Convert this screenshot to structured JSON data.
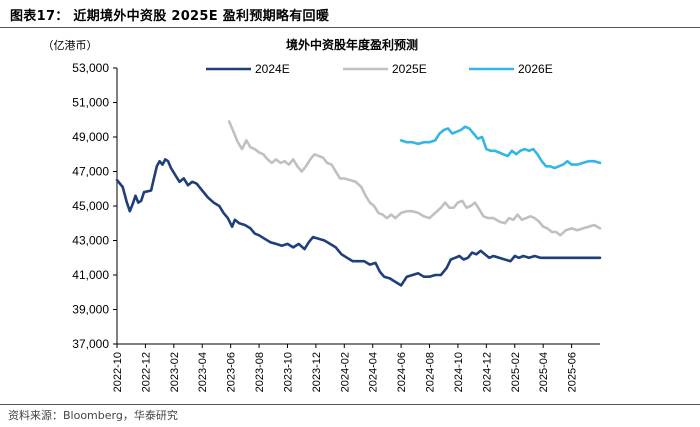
{
  "figure": {
    "title": "图表17：  近期境外中资股 2025E 盈利预期略有回暖",
    "source": "资料来源：Bloomberg，华泰研究"
  },
  "chart_data": {
    "type": "line",
    "title": "境外中资股年度盈利预测",
    "unit_label": "（亿港币）",
    "ylim": [
      37000,
      53000
    ],
    "yticks": [
      37000,
      39000,
      41000,
      43000,
      45000,
      47000,
      49000,
      51000,
      53000
    ],
    "ytick_labels": [
      "37,000",
      "39,000",
      "41,000",
      "43,000",
      "45,000",
      "47,000",
      "49,000",
      "51,000",
      "53,000"
    ],
    "xlim": [
      0,
      34
    ],
    "xtick_labels": [
      "2022-10",
      "2022-12",
      "2023-02",
      "2023-04",
      "2023-06",
      "2023-08",
      "2023-10",
      "2023-12",
      "2024-02",
      "2024-04",
      "2024-06",
      "2024-08",
      "2024-10",
      "2024-12",
      "2025-02",
      "2025-04",
      "2025-06"
    ],
    "xtick_positions": [
      0,
      2,
      4,
      6,
      8,
      10,
      12,
      14,
      16,
      18,
      20,
      22,
      24,
      26,
      28,
      30,
      32
    ],
    "legend_position": "top",
    "series": [
      {
        "name": "2024E",
        "color": "#1f3f7a",
        "points": [
          [
            0,
            46500
          ],
          [
            0.4,
            46100
          ],
          [
            0.7,
            45200
          ],
          [
            0.9,
            44700
          ],
          [
            1.1,
            45100
          ],
          [
            1.3,
            45600
          ],
          [
            1.5,
            45200
          ],
          [
            1.7,
            45300
          ],
          [
            1.9,
            45800
          ],
          [
            2.4,
            45900
          ],
          [
            2.6,
            46600
          ],
          [
            2.8,
            47300
          ],
          [
            3.0,
            47600
          ],
          [
            3.2,
            47400
          ],
          [
            3.4,
            47700
          ],
          [
            3.6,
            47600
          ],
          [
            3.8,
            47200
          ],
          [
            4.1,
            46800
          ],
          [
            4.4,
            46400
          ],
          [
            4.7,
            46600
          ],
          [
            5.0,
            46200
          ],
          [
            5.3,
            46400
          ],
          [
            5.6,
            46300
          ],
          [
            6.0,
            45900
          ],
          [
            6.4,
            45500
          ],
          [
            6.8,
            45200
          ],
          [
            7.2,
            45000
          ],
          [
            7.5,
            44600
          ],
          [
            7.8,
            44300
          ],
          [
            8.1,
            43800
          ],
          [
            8.3,
            44200
          ],
          [
            8.6,
            44000
          ],
          [
            9.0,
            43900
          ],
          [
            9.4,
            43700
          ],
          [
            9.7,
            43400
          ],
          [
            10.0,
            43300
          ],
          [
            10.4,
            43100
          ],
          [
            10.8,
            42900
          ],
          [
            11.2,
            42800
          ],
          [
            11.6,
            42700
          ],
          [
            12.0,
            42800
          ],
          [
            12.4,
            42600
          ],
          [
            12.8,
            42800
          ],
          [
            13.2,
            42500
          ],
          [
            13.5,
            42900
          ],
          [
            13.8,
            43200
          ],
          [
            14.2,
            43100
          ],
          [
            14.6,
            43000
          ],
          [
            15.0,
            42800
          ],
          [
            15.4,
            42600
          ],
          [
            15.8,
            42200
          ],
          [
            16.2,
            42000
          ],
          [
            16.6,
            41800
          ],
          [
            17.0,
            41800
          ],
          [
            17.4,
            41800
          ],
          [
            17.8,
            41600
          ],
          [
            18.2,
            41700
          ],
          [
            18.5,
            41200
          ],
          [
            18.8,
            40900
          ],
          [
            19.2,
            40800
          ],
          [
            19.6,
            40600
          ],
          [
            20.0,
            40400
          ],
          [
            20.4,
            40900
          ],
          [
            20.8,
            41000
          ],
          [
            21.2,
            41100
          ],
          [
            21.6,
            40900
          ],
          [
            22.0,
            40900
          ],
          [
            22.4,
            41000
          ],
          [
            22.8,
            41000
          ],
          [
            23.2,
            41400
          ],
          [
            23.5,
            41900
          ],
          [
            23.8,
            42000
          ],
          [
            24.1,
            42100
          ],
          [
            24.4,
            41900
          ],
          [
            24.7,
            42000
          ],
          [
            25.0,
            42300
          ],
          [
            25.3,
            42200
          ],
          [
            25.6,
            42400
          ],
          [
            25.9,
            42200
          ],
          [
            26.2,
            42000
          ],
          [
            26.5,
            42100
          ],
          [
            26.9,
            42000
          ],
          [
            27.3,
            41900
          ],
          [
            27.7,
            41800
          ],
          [
            28.0,
            42100
          ],
          [
            28.3,
            42000
          ],
          [
            28.6,
            42100
          ],
          [
            29.0,
            42000
          ],
          [
            29.4,
            42100
          ],
          [
            29.8,
            42000
          ],
          [
            30.2,
            42000
          ],
          [
            30.6,
            42000
          ],
          [
            31.0,
            42000
          ],
          [
            31.5,
            42000
          ],
          [
            32.0,
            42000
          ],
          [
            32.5,
            42000
          ],
          [
            33.0,
            42000
          ],
          [
            33.5,
            42000
          ],
          [
            34.0,
            42000
          ]
        ]
      },
      {
        "name": "2025E",
        "color": "#c0c0c0",
        "points": [
          [
            7.9,
            49900
          ],
          [
            8.2,
            49300
          ],
          [
            8.5,
            48700
          ],
          [
            8.8,
            48300
          ],
          [
            9.1,
            48800
          ],
          [
            9.4,
            48400
          ],
          [
            9.7,
            48300
          ],
          [
            10.0,
            48100
          ],
          [
            10.3,
            48000
          ],
          [
            10.6,
            47700
          ],
          [
            10.9,
            47500
          ],
          [
            11.2,
            47700
          ],
          [
            11.5,
            47500
          ],
          [
            11.8,
            47600
          ],
          [
            12.1,
            47400
          ],
          [
            12.4,
            47700
          ],
          [
            12.7,
            47300
          ],
          [
            13.0,
            47000
          ],
          [
            13.3,
            47300
          ],
          [
            13.6,
            47700
          ],
          [
            13.9,
            48000
          ],
          [
            14.2,
            47900
          ],
          [
            14.5,
            47800
          ],
          [
            14.8,
            47500
          ],
          [
            15.1,
            47400
          ],
          [
            15.4,
            47000
          ],
          [
            15.7,
            46600
          ],
          [
            16.0,
            46600
          ],
          [
            16.4,
            46500
          ],
          [
            16.8,
            46400
          ],
          [
            17.2,
            46100
          ],
          [
            17.5,
            45600
          ],
          [
            17.8,
            45200
          ],
          [
            18.1,
            45000
          ],
          [
            18.4,
            44600
          ],
          [
            18.7,
            44500
          ],
          [
            19.0,
            44300
          ],
          [
            19.3,
            44500
          ],
          [
            19.6,
            44300
          ],
          [
            20.0,
            44600
          ],
          [
            20.4,
            44700
          ],
          [
            20.8,
            44700
          ],
          [
            21.2,
            44600
          ],
          [
            21.6,
            44400
          ],
          [
            22.0,
            44300
          ],
          [
            22.4,
            44600
          ],
          [
            22.8,
            44900
          ],
          [
            23.1,
            45200
          ],
          [
            23.4,
            44900
          ],
          [
            23.7,
            44900
          ],
          [
            24.0,
            45200
          ],
          [
            24.3,
            45300
          ],
          [
            24.6,
            44900
          ],
          [
            24.9,
            45000
          ],
          [
            25.2,
            45200
          ],
          [
            25.5,
            44800
          ],
          [
            25.8,
            44400
          ],
          [
            26.1,
            44300
          ],
          [
            26.5,
            44300
          ],
          [
            26.9,
            44100
          ],
          [
            27.3,
            44000
          ],
          [
            27.6,
            44300
          ],
          [
            27.9,
            44200
          ],
          [
            28.2,
            44500
          ],
          [
            28.5,
            44200
          ],
          [
            28.8,
            44300
          ],
          [
            29.1,
            44400
          ],
          [
            29.4,
            44300
          ],
          [
            29.7,
            44100
          ],
          [
            30.0,
            43800
          ],
          [
            30.3,
            43700
          ],
          [
            30.6,
            43500
          ],
          [
            30.9,
            43500
          ],
          [
            31.2,
            43300
          ],
          [
            31.6,
            43600
          ],
          [
            32.0,
            43700
          ],
          [
            32.4,
            43600
          ],
          [
            32.8,
            43700
          ],
          [
            33.2,
            43800
          ],
          [
            33.6,
            43900
          ],
          [
            34.0,
            43700
          ]
        ]
      },
      {
        "name": "2026E",
        "color": "#33b6e6",
        "points": [
          [
            20.0,
            48800
          ],
          [
            20.4,
            48700
          ],
          [
            20.8,
            48700
          ],
          [
            21.2,
            48600
          ],
          [
            21.6,
            48700
          ],
          [
            22.0,
            48700
          ],
          [
            22.4,
            48800
          ],
          [
            22.7,
            49200
          ],
          [
            23.0,
            49400
          ],
          [
            23.3,
            49500
          ],
          [
            23.6,
            49200
          ],
          [
            23.9,
            49300
          ],
          [
            24.2,
            49400
          ],
          [
            24.5,
            49600
          ],
          [
            24.8,
            49500
          ],
          [
            25.1,
            49200
          ],
          [
            25.4,
            48900
          ],
          [
            25.7,
            49000
          ],
          [
            26.0,
            48300
          ],
          [
            26.3,
            48200
          ],
          [
            26.6,
            48200
          ],
          [
            26.9,
            48100
          ],
          [
            27.2,
            48000
          ],
          [
            27.5,
            47900
          ],
          [
            27.8,
            48200
          ],
          [
            28.1,
            48000
          ],
          [
            28.4,
            48200
          ],
          [
            28.7,
            48300
          ],
          [
            29.0,
            48200
          ],
          [
            29.3,
            48300
          ],
          [
            29.6,
            48000
          ],
          [
            29.9,
            47600
          ],
          [
            30.2,
            47300
          ],
          [
            30.5,
            47300
          ],
          [
            30.8,
            47200
          ],
          [
            31.1,
            47300
          ],
          [
            31.4,
            47400
          ],
          [
            31.7,
            47600
          ],
          [
            32.0,
            47400
          ],
          [
            32.4,
            47400
          ],
          [
            32.8,
            47500
          ],
          [
            33.2,
            47600
          ],
          [
            33.6,
            47600
          ],
          [
            34.0,
            47500
          ]
        ]
      }
    ]
  }
}
